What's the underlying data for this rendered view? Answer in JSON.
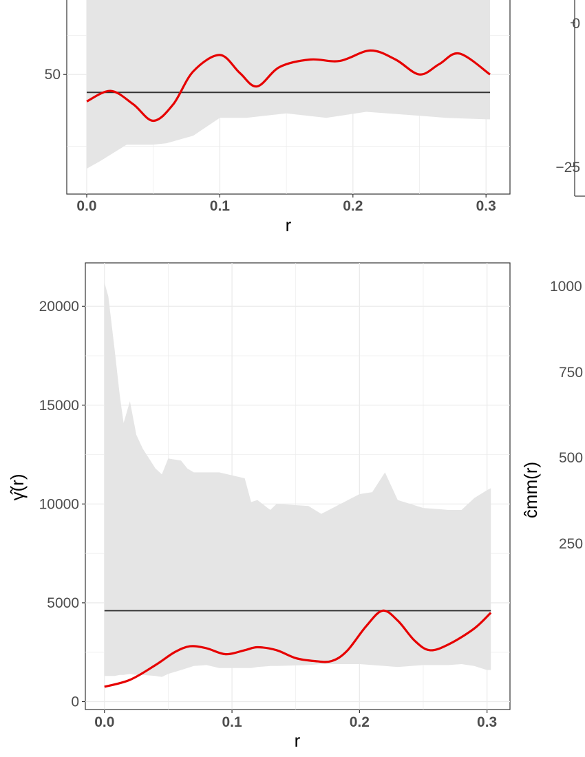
{
  "chart_data": [
    {
      "panel": "top-left",
      "type": "line",
      "xlabel": "r",
      "x_ticks": [
        "0.0",
        "0.1",
        "0.2",
        "0.3"
      ],
      "y_ticks": [
        "50"
      ],
      "xlim": [
        -0.015,
        0.318
      ],
      "ylim": [
        42.0,
        55.9
      ],
      "grid": true,
      "reference_line": 48.8,
      "envelope": {
        "x": [
          0.0,
          0.01,
          0.03,
          0.05,
          0.06,
          0.08,
          0.1,
          0.12,
          0.15,
          0.18,
          0.21,
          0.24,
          0.27,
          0.3,
          0.303
        ],
        "lower": [
          43.7,
          44.2,
          45.3,
          45.3,
          45.4,
          45.9,
          47.1,
          47.1,
          47.4,
          47.1,
          47.5,
          47.3,
          47.1,
          47.0,
          47.0
        ],
        "upper": [
          55.9,
          55.9,
          55.9,
          55.9,
          55.9,
          55.9,
          55.9,
          55.9,
          55.9,
          55.9,
          55.9,
          55.9,
          55.9,
          55.9,
          55.9
        ]
      },
      "series": [
        {
          "color": "#e60000",
          "x": [
            0.0,
            0.018,
            0.035,
            0.05,
            0.065,
            0.08,
            0.1,
            0.115,
            0.128,
            0.145,
            0.168,
            0.19,
            0.213,
            0.232,
            0.25,
            0.265,
            0.28,
            0.303
          ],
          "y": [
            48.2,
            48.9,
            48.0,
            46.9,
            48.0,
            50.2,
            51.3,
            50.1,
            49.2,
            50.5,
            51.0,
            50.9,
            51.6,
            51.0,
            50.0,
            50.7,
            51.4,
            50.0
          ]
        }
      ]
    },
    {
      "panel": "bottom-left",
      "type": "line",
      "xlabel": "r",
      "ylabel": "γ̂(r)",
      "x_ticks": [
        "0.0",
        "0.1",
        "0.2",
        "0.3"
      ],
      "y_ticks": [
        "0",
        "5000",
        "10000",
        "15000",
        "20000"
      ],
      "xlim": [
        -0.015,
        0.318
      ],
      "ylim": [
        -400,
        22200
      ],
      "grid": true,
      "reference_line": 4600,
      "envelope": {
        "x": [
          0.0,
          0.003,
          0.008,
          0.012,
          0.015,
          0.02,
          0.025,
          0.03,
          0.04,
          0.045,
          0.05,
          0.06,
          0.065,
          0.07,
          0.08,
          0.09,
          0.11,
          0.115,
          0.12,
          0.13,
          0.135,
          0.16,
          0.17,
          0.2,
          0.21,
          0.22,
          0.23,
          0.25,
          0.27,
          0.28,
          0.29,
          0.3,
          0.303
        ],
        "upper": [
          21200,
          20500,
          17800,
          15500,
          14100,
          15200,
          13500,
          12800,
          11800,
          11500,
          12300,
          12200,
          11800,
          11600,
          11600,
          11600,
          11300,
          10100,
          10200,
          9700,
          10000,
          9900,
          9500,
          10500,
          10600,
          11600,
          10200,
          9800,
          9700,
          9700,
          10300,
          10700,
          10800
        ],
        "lower": [
          1300,
          1300,
          1300,
          1350,
          1350,
          1400,
          1350,
          1350,
          1300,
          1250,
          1400,
          1600,
          1700,
          1800,
          1850,
          1700,
          1700,
          1700,
          1750,
          1800,
          1800,
          1850,
          1900,
          1900,
          1850,
          1800,
          1750,
          1850,
          1850,
          1900,
          1800,
          1600,
          1600
        ]
      },
      "series": [
        {
          "color": "#e60000",
          "x": [
            0.0,
            0.02,
            0.04,
            0.055,
            0.067,
            0.08,
            0.095,
            0.11,
            0.12,
            0.135,
            0.15,
            0.165,
            0.178,
            0.19,
            0.205,
            0.218,
            0.23,
            0.243,
            0.255,
            0.27,
            0.29,
            0.303
          ],
          "y": [
            750,
            1100,
            1850,
            2500,
            2800,
            2700,
            2400,
            2600,
            2750,
            2600,
            2200,
            2050,
            2050,
            2550,
            3800,
            4600,
            4100,
            3100,
            2600,
            2900,
            3700,
            4500
          ]
        }
      ]
    },
    {
      "panel": "top-right",
      "type": "line",
      "y_ticks": [
        "0",
        "−25"
      ]
    },
    {
      "panel": "bottom-right",
      "type": "line",
      "ylabel": "ĉmm(r)",
      "y_ticks": [
        "1000",
        "750",
        "500",
        "250"
      ]
    }
  ]
}
